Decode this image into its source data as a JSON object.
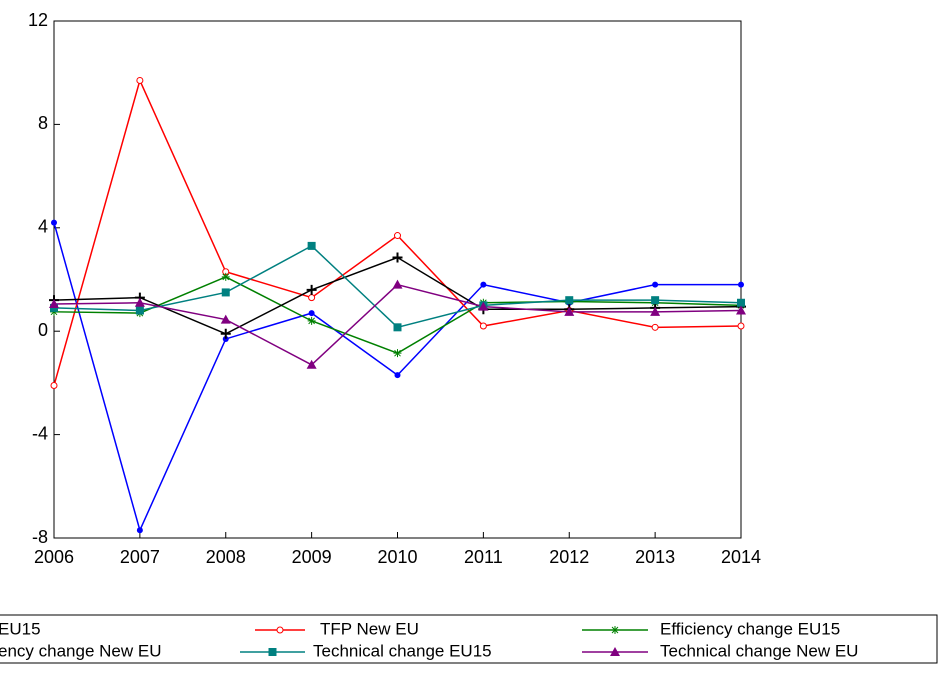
{
  "chart_data": {
    "type": "line",
    "x": [
      2006,
      2007,
      2008,
      2009,
      2010,
      2011,
      2012,
      2013,
      2014
    ],
    "xlim": [
      2006,
      2014
    ],
    "xticks": [
      2006,
      2007,
      2008,
      2009,
      2010,
      2011,
      2012,
      2013,
      2014
    ],
    "ylim": [
      -8,
      12
    ],
    "yticks": [
      -8,
      -4,
      0,
      4,
      8,
      12
    ],
    "grid": false,
    "legend": "bottom",
    "series": [
      {
        "name": "EU15",
        "color": "#0000ff",
        "marker": "filled-circle",
        "values": [
          4.2,
          -7.7,
          -0.3,
          0.7,
          -1.7,
          1.8,
          1.1,
          1.8,
          1.8
        ]
      },
      {
        "name": "TFP New EU",
        "color": "#ff0000",
        "marker": "open-circle",
        "values": [
          -2.1,
          9.7,
          2.3,
          1.3,
          3.7,
          0.2,
          0.8,
          0.15,
          0.2
        ]
      },
      {
        "name": "Efficiency change EU15",
        "color": "#008000",
        "marker": "asterisk",
        "values": [
          0.75,
          0.7,
          2.1,
          0.4,
          -0.85,
          1.1,
          1.15,
          1.1,
          1.0
        ]
      },
      {
        "name": "ency change New EU",
        "color": "#000000",
        "marker": "plus",
        "values": [
          1.2,
          1.3,
          -0.1,
          1.6,
          2.85,
          0.85,
          0.85,
          0.9,
          0.95
        ]
      },
      {
        "name": "Technical change EU15",
        "color": "#008080",
        "marker": "square",
        "values": [
          0.9,
          0.8,
          1.5,
          3.3,
          0.15,
          1.0,
          1.2,
          1.2,
          1.1
        ]
      },
      {
        "name": "Technical change New EU",
        "color": "#800080",
        "marker": "triangle",
        "values": [
          1.05,
          1.1,
          0.45,
          -1.3,
          1.8,
          0.95,
          0.75,
          0.75,
          0.8
        ]
      }
    ]
  }
}
